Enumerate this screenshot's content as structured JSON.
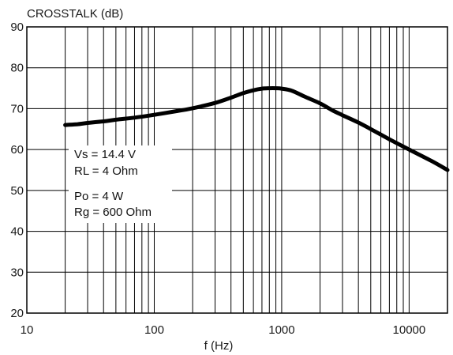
{
  "chart_data": {
    "type": "line",
    "ylabel": "CROSSTALK (dB)",
    "xlabel": "f (Hz)",
    "x_scale": "log",
    "xlim": [
      10,
      20000
    ],
    "ylim": [
      20,
      90
    ],
    "x_tick_labels": [
      "10",
      "100",
      "1000",
      "10000"
    ],
    "x_tick_values": [
      10,
      100,
      1000,
      10000
    ],
    "y_tick_values": [
      20,
      30,
      40,
      50,
      60,
      70,
      80,
      90
    ],
    "y_tick_labels": [
      "20",
      "30",
      "40",
      "50",
      "60",
      "70",
      "80",
      "90"
    ],
    "grid": true,
    "annotations": [
      "Vs = 14.4 V",
      "RL = 4 Ohm",
      "Po = 4 W",
      "Rg = 600 Ohm"
    ],
    "series": [
      {
        "x": [
          20,
          25,
          30,
          40,
          50,
          70,
          100,
          150,
          200,
          300,
          400,
          500,
          600,
          700,
          800,
          900,
          1000,
          1200,
          1500,
          2000,
          2500,
          3000,
          4000,
          5000,
          7000,
          10000,
          15000,
          20000
        ],
        "y": [
          66,
          66.2,
          66.5,
          66.9,
          67.3,
          67.8,
          68.5,
          69.4,
          70.1,
          71.4,
          72.7,
          73.8,
          74.5,
          74.9,
          75,
          75,
          74.9,
          74.4,
          73,
          71.3,
          69.6,
          68.4,
          66.6,
          65,
          62.5,
          60,
          57.2,
          55
        ]
      }
    ],
    "colors": {
      "line": "#000000",
      "grid": "#000000",
      "background": "#ffffff"
    }
  }
}
